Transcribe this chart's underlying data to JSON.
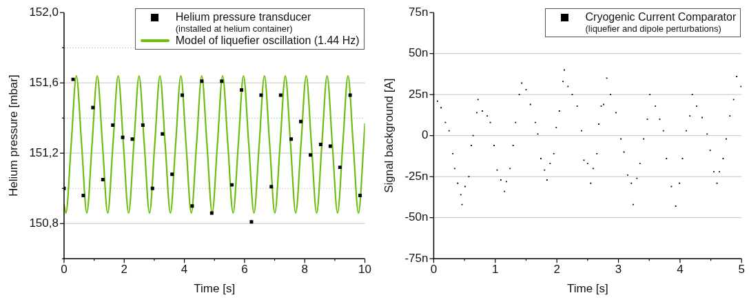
{
  "chart_data": [
    {
      "type": "scatter",
      "xlabel": "Time [s]",
      "ylabel": "Helium pressure [mbar]",
      "xlim": [
        0,
        10
      ],
      "ylim": [
        150.6,
        152.0
      ],
      "xticks": [
        0,
        {
          "value": 1,
          "label": null
        },
        2,
        {
          "value": 3,
          "label": null
        },
        4,
        {
          "value": 5,
          "label": null
        },
        6,
        {
          "value": 7,
          "label": null
        },
        8,
        {
          "value": 9,
          "label": null
        },
        10
      ],
      "yticks": [
        {
          "value": 150.6,
          "label": null
        },
        {
          "value": 150.8,
          "label": "150,8"
        },
        {
          "value": 151.0,
          "label": null
        },
        {
          "value": 151.2,
          "label": "151,2"
        },
        {
          "value": 151.4,
          "label": null
        },
        {
          "value": 151.6,
          "label": "151,6"
        },
        {
          "value": 151.8,
          "label": null
        },
        {
          "value": 152.0,
          "label": "152,0"
        }
      ],
      "grid": "y",
      "legend": "top right",
      "series": [
        {
          "name": "Helium pressure transducer\n(installed at helium container)",
          "type": "scatter",
          "marker": "square",
          "color": "#000000",
          "x": [
            0,
            0.3,
            0.64,
            0.96,
            1.29,
            1.62,
            1.95,
            2.27,
            2.62,
            2.94,
            3.27,
            3.59,
            3.93,
            4.26,
            4.58,
            4.91,
            5.24,
            5.58,
            5.9,
            6.23,
            6.55,
            6.89,
            7.2,
            7.55,
            7.87,
            8.19,
            8.53,
            8.85,
            9.17,
            9.51,
            9.84
          ],
          "values": [
            151.0,
            151.62,
            150.96,
            151.46,
            151.05,
            151.36,
            151.29,
            151.28,
            151.36,
            151.0,
            151.31,
            151.08,
            151.53,
            150.9,
            151.61,
            150.86,
            151.61,
            151.02,
            151.56,
            150.81,
            151.53,
            151.01,
            151.53,
            151.28,
            151.38,
            151.19,
            151.25,
            151.24,
            151.12,
            151.53,
            150.96
          ]
        },
        {
          "name": "Model of liquefier oscillation (1.44 Hz)",
          "type": "line",
          "marker": "none",
          "color": "#6cbd0f",
          "x": [
            0,
            0.063,
            0.237,
            0.41,
            0.584,
            0.757,
            0.931,
            1.105,
            1.278,
            1.452,
            1.626,
            1.799,
            1.973,
            2.146,
            2.32,
            2.494,
            2.667,
            2.841,
            3.015,
            3.188,
            3.362,
            3.535,
            3.709,
            3.883,
            4.056,
            4.23,
            4.404,
            4.577,
            4.751,
            4.924,
            5.098,
            5.272,
            5.445,
            5.619,
            5.793,
            5.966,
            6.14,
            6.313,
            6.487,
            6.661,
            6.834,
            7.008,
            7.182,
            7.355,
            7.529,
            7.702,
            7.876,
            8.05,
            8.223,
            8.397,
            8.571,
            8.744,
            8.918,
            9.091,
            9.265,
            9.439,
            9.612,
            9.786,
            9.96,
            10
          ],
          "values": [
            150.91,
            150.86,
            151.25,
            151.64,
            151.25,
            150.86,
            151.25,
            151.64,
            151.25,
            150.86,
            151.25,
            151.64,
            151.25,
            150.86,
            151.25,
            151.64,
            151.25,
            150.86,
            151.25,
            151.64,
            151.25,
            150.86,
            151.25,
            151.64,
            151.25,
            150.86,
            151.25,
            151.64,
            151.25,
            150.86,
            151.25,
            151.64,
            151.25,
            150.86,
            151.25,
            151.64,
            151.25,
            150.86,
            151.25,
            151.64,
            151.25,
            150.86,
            151.25,
            151.64,
            151.25,
            150.86,
            151.25,
            151.64,
            151.25,
            150.86,
            151.25,
            151.64,
            151.25,
            150.86,
            151.25,
            151.64,
            151.25,
            150.86,
            151.25,
            151.37
          ]
        }
      ]
    },
    {
      "type": "scatter",
      "xlabel": "Time [s]",
      "ylabel": "Signal background [A]",
      "xlim": [
        0,
        5
      ],
      "ylim": [
        -75,
        75
      ],
      "xticks": [
        0,
        {
          "value": 0.5,
          "label": null
        },
        1,
        {
          "value": 1.5,
          "label": null
        },
        2,
        {
          "value": 2.5,
          "label": null
        },
        3,
        {
          "value": 3.5,
          "label": null
        },
        4,
        {
          "value": 4.5,
          "label": null
        },
        5
      ],
      "yticks": [
        {
          "value": -75,
          "label": "-75n"
        },
        {
          "value": -50,
          "label": "-50n"
        },
        {
          "value": -25,
          "label": "-25n"
        },
        0,
        {
          "value": 25,
          "label": "25n"
        },
        {
          "value": 50,
          "label": "50n"
        },
        {
          "value": 75,
          "label": "75n"
        }
      ],
      "grid": "y",
      "legend": "top right",
      "series": [
        {
          "name": "Cryogenic Current Comparator\n(liquefier and dipole perturbations)",
          "type": "scatter",
          "marker": "square",
          "color": "#000000",
          "x": [
            0,
            0.06,
            0.12,
            0.19,
            0.25,
            0.31,
            0.34,
            0.39,
            0.44,
            0.46,
            0.51,
            0.57,
            0.61,
            0.64,
            0.7,
            0.72,
            0.79,
            0.87,
            0.92,
            0.98,
            1.03,
            1.09,
            1.15,
            1.18,
            1.24,
            1.29,
            1.33,
            1.39,
            1.43,
            1.5,
            1.57,
            1.65,
            1.69,
            1.74,
            1.8,
            1.84,
            1.89,
            1.95,
            1.99,
            2.04,
            2.1,
            2.12,
            2.18,
            2.25,
            2.33,
            2.4,
            2.44,
            2.5,
            2.55,
            2.59,
            2.65,
            2.68,
            2.72,
            2.76,
            2.81,
            2.87,
            2.96,
            3.04,
            3.09,
            3.15,
            3.21,
            3.24,
            3.3,
            3.35,
            3.41,
            3.47,
            3.51,
            3.6,
            3.67,
            3.73,
            3.78,
            3.86,
            3.93,
            3.99,
            4.04,
            4.1,
            4.16,
            4.2,
            4.27,
            4.36,
            4.44,
            4.49,
            4.55,
            4.6,
            4.64,
            4.7,
            4.75,
            4.81,
            4.87,
            4.92,
            4.99
          ],
          "values": [
            25,
            21,
            17,
            8,
            3,
            -11,
            -20,
            -29,
            -36,
            -42,
            -31,
            -25,
            -6,
            0,
            14,
            22,
            15,
            12,
            8,
            -6,
            -21,
            -27,
            -34,
            -28,
            -20,
            -6,
            8,
            25,
            32,
            28,
            19,
            8,
            1,
            -14,
            -21,
            -27,
            -17,
            -11,
            5,
            15,
            33,
            40,
            30,
            25,
            18,
            3,
            -15,
            -17,
            -29,
            -20,
            -11,
            7,
            18,
            19,
            35,
            25,
            14,
            -2,
            -10,
            -24,
            -29,
            -42,
            -26,
            -17,
            -2,
            10,
            25,
            18,
            10,
            3,
            -14,
            -31,
            -43,
            -29,
            -14,
            3,
            12,
            25,
            18,
            11,
            1,
            -9,
            -22,
            -29,
            -22,
            -14,
            -2,
            12,
            22,
            36,
            30
          ]
        }
      ]
    }
  ]
}
